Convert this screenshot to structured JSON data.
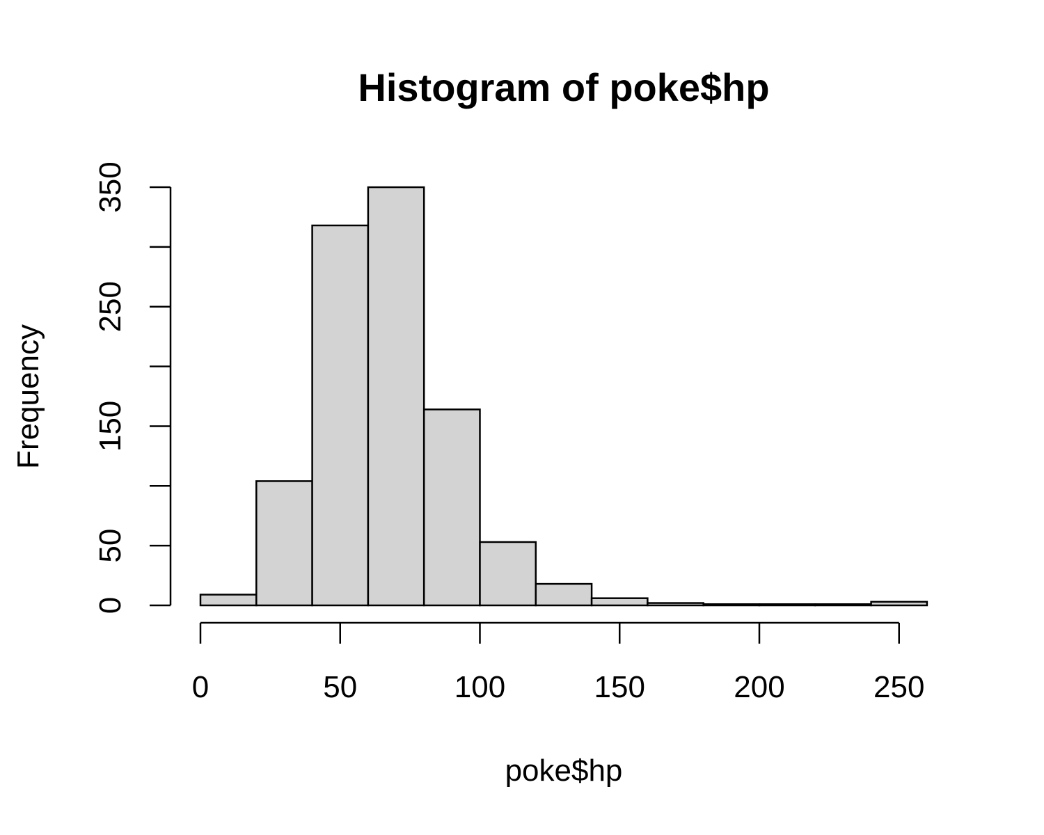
{
  "chart_data": {
    "type": "bar",
    "title": "Histogram of poke$hp",
    "xlabel": "poke$hp",
    "ylabel": "Frequency",
    "bins": [
      {
        "start": 0,
        "end": 20,
        "count": 9
      },
      {
        "start": 20,
        "end": 40,
        "count": 104
      },
      {
        "start": 40,
        "end": 60,
        "count": 318
      },
      {
        "start": 60,
        "end": 80,
        "count": 350
      },
      {
        "start": 80,
        "end": 100,
        "count": 164
      },
      {
        "start": 100,
        "end": 120,
        "count": 53
      },
      {
        "start": 120,
        "end": 140,
        "count": 18
      },
      {
        "start": 140,
        "end": 160,
        "count": 6
      },
      {
        "start": 160,
        "end": 180,
        "count": 2
      },
      {
        "start": 180,
        "end": 200,
        "count": 1
      },
      {
        "start": 200,
        "end": 220,
        "count": 1
      },
      {
        "start": 220,
        "end": 240,
        "count": 1
      },
      {
        "start": 240,
        "end": 260,
        "count": 3
      }
    ],
    "x_ticks": [
      0,
      50,
      100,
      150,
      200,
      250
    ],
    "x_tick_labels": [
      "0",
      "50",
      "100",
      "150",
      "200",
      "250"
    ],
    "y_ticks": [
      0,
      50,
      100,
      150,
      200,
      250,
      300,
      350
    ],
    "y_tick_labels": [
      "0",
      "50",
      "",
      "150",
      "",
      "250",
      "",
      "350"
    ],
    "xlim": [
      0,
      260
    ],
    "ylim": [
      0,
      350
    ],
    "grid": false,
    "legend": "none"
  }
}
